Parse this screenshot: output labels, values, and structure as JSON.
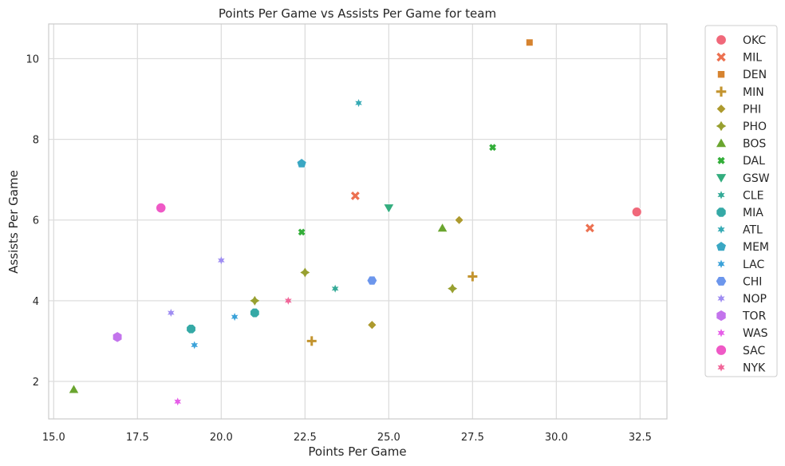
{
  "chart_data": {
    "type": "scatter",
    "title": "Points Per Game vs Assists Per Game for team",
    "xlabel": "Points Per Game",
    "ylabel": "Assists Per Game",
    "xlim": [
      14.85,
      33.3
    ],
    "ylim": [
      1.07,
      10.86
    ],
    "xticks": [
      "15.0",
      "17.5",
      "20.0",
      "22.5",
      "25.0",
      "27.5",
      "30.0",
      "32.5"
    ],
    "yticks": [
      "2",
      "4",
      "6",
      "8",
      "10"
    ],
    "grid": true,
    "legend_position": "outside-right",
    "series": [
      {
        "name": "OKC",
        "color": "#f0687a",
        "marker": "circle",
        "points": [
          [
            32.4,
            6.2
          ]
        ]
      },
      {
        "name": "MIL",
        "color": "#ec7151",
        "marker": "x",
        "points": [
          [
            24.0,
            6.6
          ],
          [
            31.0,
            5.8
          ]
        ]
      },
      {
        "name": "DEN",
        "color": "#d6832f",
        "marker": "square",
        "points": [
          [
            29.2,
            10.4
          ]
        ]
      },
      {
        "name": "MIN",
        "color": "#c3942f",
        "marker": "plus",
        "points": [
          [
            27.5,
            4.6
          ],
          [
            22.7,
            3.0
          ]
        ]
      },
      {
        "name": "PHI",
        "color": "#ad9a2e",
        "marker": "diamond",
        "points": [
          [
            27.1,
            6.0
          ],
          [
            24.5,
            3.4
          ]
        ]
      },
      {
        "name": "PHO",
        "color": "#98a030",
        "marker": "thin-diamond",
        "points": [
          [
            22.5,
            4.7
          ],
          [
            21.0,
            4.0
          ],
          [
            26.9,
            4.3
          ]
        ]
      },
      {
        "name": "BOS",
        "color": "#6aa52f",
        "marker": "triangle-up",
        "points": [
          [
            26.6,
            5.8
          ],
          [
            15.6,
            1.8
          ]
        ]
      },
      {
        "name": "DAL",
        "color": "#33ae39",
        "marker": "x-filled",
        "points": [
          [
            28.1,
            7.8
          ],
          [
            22.4,
            5.7
          ]
        ]
      },
      {
        "name": "GSW",
        "color": "#33ad7e",
        "marker": "triangle-down",
        "points": [
          [
            25.0,
            6.3
          ]
        ]
      },
      {
        "name": "CLE",
        "color": "#34aa97",
        "marker": "star",
        "points": [
          [
            23.4,
            4.3
          ]
        ]
      },
      {
        "name": "MIA",
        "color": "#35a9a6",
        "marker": "octagon",
        "points": [
          [
            21.0,
            3.7
          ],
          [
            19.1,
            3.3
          ]
        ]
      },
      {
        "name": "ATL",
        "color": "#37abb5",
        "marker": "star",
        "points": [
          [
            24.1,
            8.9
          ]
        ]
      },
      {
        "name": "MEM",
        "color": "#3aa7c3",
        "marker": "pentagon",
        "points": [
          [
            22.4,
            7.4
          ]
        ]
      },
      {
        "name": "LAC",
        "color": "#3ba2d9",
        "marker": "star",
        "points": [
          [
            20.4,
            3.6
          ],
          [
            19.2,
            2.9
          ]
        ]
      },
      {
        "name": "CHI",
        "color": "#6c96ec",
        "marker": "hexagon",
        "points": [
          [
            24.5,
            4.5
          ]
        ]
      },
      {
        "name": "NOP",
        "color": "#9f8df2",
        "marker": "star",
        "points": [
          [
            20.0,
            5.0
          ],
          [
            18.5,
            3.7
          ]
        ]
      },
      {
        "name": "TOR",
        "color": "#c374ec",
        "marker": "hexagon-flat",
        "points": [
          [
            16.9,
            3.1
          ]
        ]
      },
      {
        "name": "WAS",
        "color": "#e65ee8",
        "marker": "star",
        "points": [
          [
            18.7,
            1.5
          ]
        ]
      },
      {
        "name": "SAC",
        "color": "#ef59c6",
        "marker": "circle-large",
        "points": [
          [
            18.2,
            6.3
          ]
        ]
      },
      {
        "name": "NYK",
        "color": "#f16699",
        "marker": "star",
        "points": [
          [
            22.0,
            4.0
          ]
        ]
      }
    ]
  }
}
